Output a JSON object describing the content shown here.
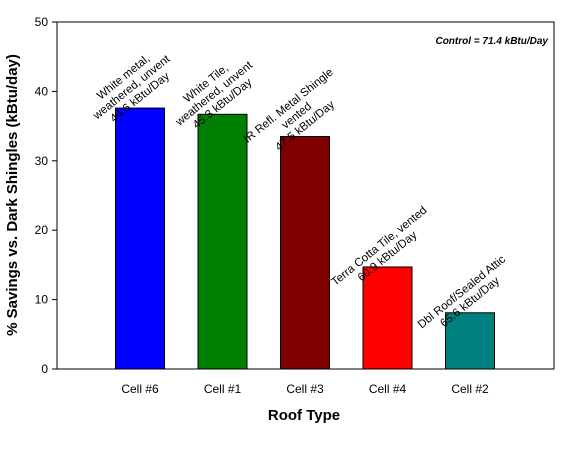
{
  "chart_data": {
    "type": "bar",
    "xlabel": "Roof Type",
    "ylabel": "% Savings vs. Dark Shingles (kBtu/day)",
    "ylim": [
      0,
      50
    ],
    "yticks": [
      0,
      10,
      20,
      30,
      40,
      50
    ],
    "grid": false,
    "legend": "none",
    "annotation": "Control = 71.4 kBtu/Day",
    "categories": [
      "Cell #6",
      "Cell #1",
      "Cell #3",
      "Cell #4",
      "Cell #2"
    ],
    "values": [
      37.6,
      36.7,
      33.5,
      14.7,
      8.1
    ],
    "colors": [
      "#0000ff",
      "#008000",
      "#800000",
      "#ff0000",
      "#008080"
    ],
    "bar_labels": [
      [
        "White metal,",
        "weathered, unvent",
        "44.6 kBtu/Day"
      ],
      [
        "White Tile,",
        "weathered, unvent",
        "45.3 kBtu/Day"
      ],
      [
        "IR Refl. Metal Shingle",
        "vented",
        "47.5 kBtu/Day"
      ],
      [
        "Terra Cotta Tile, vented",
        "60.9 kBtu/Day"
      ],
      [
        "Dbl Roof/Sealed Attic",
        "65.6 kBtu/Day"
      ]
    ]
  }
}
